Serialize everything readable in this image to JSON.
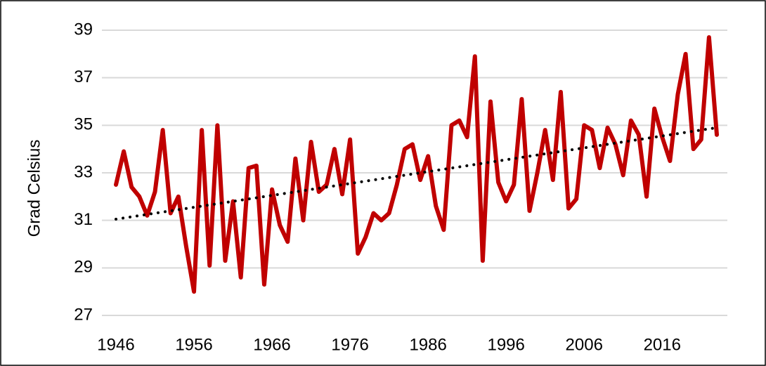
{
  "chart_data": {
    "type": "line",
    "y_label": "Grad Celsius",
    "x": [
      1946,
      1947,
      1948,
      1949,
      1950,
      1951,
      1952,
      1953,
      1954,
      1955,
      1956,
      1957,
      1958,
      1959,
      1960,
      1961,
      1962,
      1963,
      1964,
      1965,
      1966,
      1967,
      1968,
      1969,
      1970,
      1971,
      1972,
      1973,
      1974,
      1975,
      1976,
      1977,
      1978,
      1979,
      1980,
      1981,
      1982,
      1983,
      1984,
      1985,
      1986,
      1987,
      1988,
      1989,
      1990,
      1991,
      1992,
      1993,
      1994,
      1995,
      1996,
      1997,
      1998,
      1999,
      2000,
      2001,
      2002,
      2003,
      2004,
      2005,
      2006,
      2007,
      2008,
      2009,
      2010,
      2011,
      2012,
      2013,
      2014,
      2015,
      2016,
      2017,
      2018,
      2019,
      2020,
      2021,
      2022,
      2023
    ],
    "series": [
      {
        "color": "#c00000",
        "values": [
          32.5,
          33.9,
          32.4,
          32.0,
          31.2,
          32.2,
          34.8,
          31.3,
          32.0,
          29.9,
          28.0,
          34.8,
          29.1,
          35.0,
          29.3,
          31.8,
          28.6,
          33.2,
          33.3,
          28.3,
          32.3,
          30.8,
          30.1,
          33.6,
          31.0,
          34.3,
          32.2,
          32.5,
          34.0,
          32.1,
          34.4,
          29.6,
          30.3,
          31.3,
          31.0,
          31.3,
          32.5,
          34.0,
          34.2,
          32.7,
          33.7,
          31.6,
          30.6,
          35.0,
          35.2,
          34.5,
          37.9,
          29.3,
          36.0,
          32.6,
          31.8,
          32.5,
          36.1,
          31.4,
          33.0,
          34.8,
          32.7,
          36.4,
          31.5,
          31.9,
          35.0,
          34.8,
          33.2,
          34.9,
          34.2,
          32.9,
          35.2,
          34.6,
          32.0,
          35.7,
          34.5,
          33.5,
          36.3,
          38.0,
          34.0,
          34.4,
          38.7,
          34.6
        ]
      },
      {
        "color": "#000000",
        "style": "dotted",
        "x": [
          1946,
          2023
        ],
        "values": [
          31.05,
          34.9
        ]
      }
    ],
    "xlim": [
      1946,
      2023
    ],
    "xticks": [
      1946,
      1956,
      1966,
      1976,
      1986,
      1996,
      2006,
      2016
    ],
    "ylim": [
      27,
      39
    ],
    "yticks": [
      27,
      29,
      31,
      33,
      35,
      37,
      39
    ],
    "grid": true
  }
}
